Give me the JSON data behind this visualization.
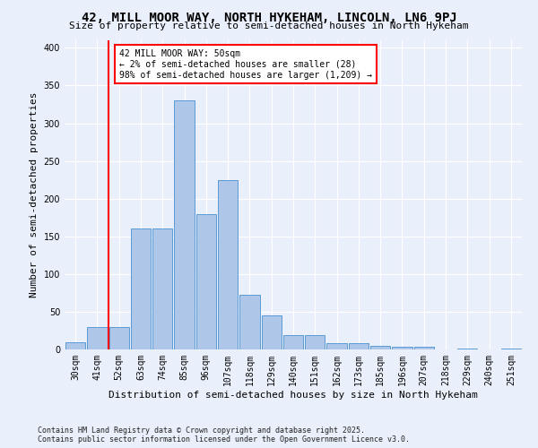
{
  "title": "42, MILL MOOR WAY, NORTH HYKEHAM, LINCOLN, LN6 9PJ",
  "subtitle": "Size of property relative to semi-detached houses in North Hykeham",
  "xlabel": "Distribution of semi-detached houses by size in North Hykeham",
  "ylabel": "Number of semi-detached properties",
  "footer": "Contains HM Land Registry data © Crown copyright and database right 2025.\nContains public sector information licensed under the Open Government Licence v3.0.",
  "bin_labels": [
    "30sqm",
    "41sqm",
    "52sqm",
    "63sqm",
    "74sqm",
    "85sqm",
    "96sqm",
    "107sqm",
    "118sqm",
    "129sqm",
    "140sqm",
    "151sqm",
    "162sqm",
    "173sqm",
    "185sqm",
    "196sqm",
    "207sqm",
    "218sqm",
    "229sqm",
    "240sqm",
    "251sqm"
  ],
  "bar_values": [
    10,
    30,
    30,
    160,
    160,
    330,
    180,
    225,
    73,
    45,
    19,
    19,
    8,
    8,
    5,
    4,
    3,
    0,
    1,
    0,
    1
  ],
  "bar_color": "#aec6e8",
  "bar_edge_color": "#5b9bd5",
  "vline_color": "red",
  "annotation_text": "42 MILL MOOR WAY: 50sqm\n← 2% of semi-detached houses are smaller (28)\n98% of semi-detached houses are larger (1,209) →",
  "ylim": [
    0,
    410
  ],
  "yticks": [
    0,
    50,
    100,
    150,
    200,
    250,
    300,
    350,
    400
  ],
  "bg_color": "#eaf0fb",
  "plot_bg_color": "#eaf0fb",
  "title_fontsize": 10,
  "subtitle_fontsize": 8,
  "label_fontsize": 8,
  "tick_fontsize": 7,
  "annotation_fontsize": 7,
  "footer_fontsize": 6
}
